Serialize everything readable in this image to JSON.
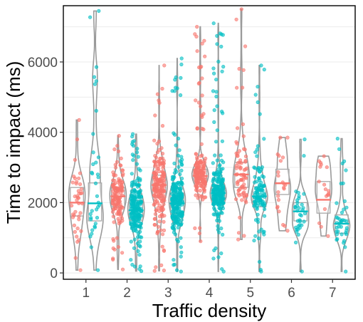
{
  "chart_data": {
    "type": "violin",
    "title": "",
    "xlabel": "Traffic density",
    "ylabel": "Time to impact (ms)",
    "ylim": [
      -180,
      7600
    ],
    "xlim": [
      0.45,
      7.55
    ],
    "yticks": [
      0,
      2000,
      4000,
      6000
    ],
    "ytick_labels": [
      "0",
      "2000",
      "4000",
      "6000"
    ],
    "xticks": [
      1,
      2,
      3,
      4,
      5,
      6,
      7
    ],
    "xtick_labels": [
      "1",
      "2",
      "3",
      "4",
      "5",
      "6",
      "7"
    ],
    "grid": true,
    "legend": "none",
    "colors": {
      "red": "#F8766D",
      "teal": "#00BFC4"
    },
    "groups": [
      {
        "x": 1,
        "color": "red",
        "n": 40,
        "min": 80,
        "max": 4350,
        "q1": 1620,
        "median": 2000,
        "q3": 2430
      },
      {
        "x": 1,
        "color": "teal",
        "n": 35,
        "min": 80,
        "max": 7450,
        "q1": 1480,
        "median": 1980,
        "q3": 2560
      },
      {
        "x": 2,
        "color": "red",
        "n": 140,
        "min": 100,
        "max": 3900,
        "q1": 1880,
        "median": 2180,
        "q3": 2430
      },
      {
        "x": 2,
        "color": "teal",
        "n": 210,
        "min": 50,
        "max": 3950,
        "q1": 1500,
        "median": 1780,
        "q3": 2060
      },
      {
        "x": 3,
        "color": "red",
        "n": 190,
        "min": 60,
        "max": 5900,
        "q1": 2150,
        "median": 2500,
        "q3": 2780
      },
      {
        "x": 3,
        "color": "teal",
        "n": 240,
        "min": 40,
        "max": 6100,
        "q1": 1680,
        "median": 1980,
        "q3": 2270
      },
      {
        "x": 4,
        "color": "red",
        "n": 170,
        "min": 900,
        "max": 7000,
        "q1": 2580,
        "median": 2760,
        "q3": 2950
      },
      {
        "x": 4,
        "color": "teal",
        "n": 230,
        "min": 40,
        "max": 7100,
        "q1": 2020,
        "median": 2270,
        "q3": 2500
      },
      {
        "x": 5,
        "color": "red",
        "n": 75,
        "min": 950,
        "max": 7500,
        "q1": 2430,
        "median": 2800,
        "q3": 3140
      },
      {
        "x": 5,
        "color": "teal",
        "n": 110,
        "min": 40,
        "max": 5900,
        "q1": 1880,
        "median": 2180,
        "q3": 2450
      },
      {
        "x": 6,
        "color": "red",
        "n": 22,
        "min": 1200,
        "max": 3850,
        "q1": 2230,
        "median": 2550,
        "q3": 2950
      },
      {
        "x": 6,
        "color": "teal",
        "n": 35,
        "min": 40,
        "max": 3800,
        "q1": 1480,
        "median": 1750,
        "q3": 2000
      },
      {
        "x": 7,
        "color": "red",
        "n": 18,
        "min": 1050,
        "max": 3320,
        "q1": 1700,
        "median": 2080,
        "q3": 2600
      },
      {
        "x": 7,
        "color": "teal",
        "n": 40,
        "min": 40,
        "max": 3820,
        "q1": 1130,
        "median": 1400,
        "q3": 1650
      }
    ]
  }
}
